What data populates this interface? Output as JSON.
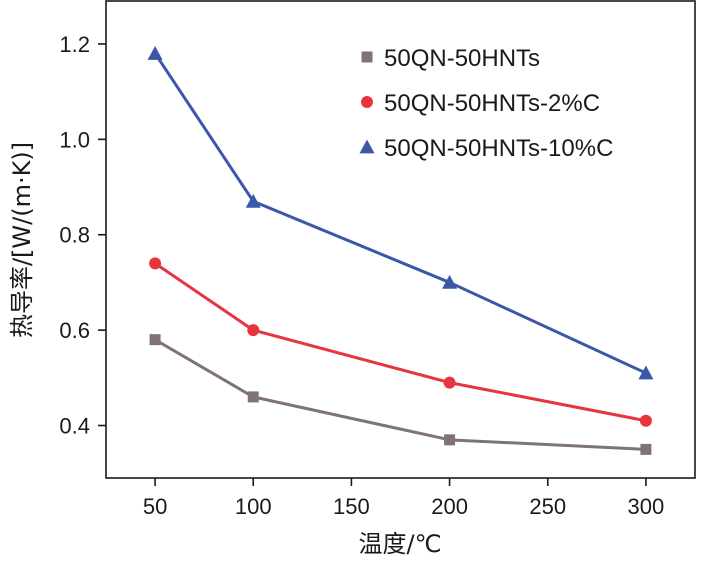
{
  "chart_data": {
    "type": "line",
    "title": "",
    "xlabel": "温度/℃",
    "ylabel": "热导率/[W/(m·K)]",
    "x": [
      50,
      100,
      200,
      300
    ],
    "xlim": [
      25,
      325
    ],
    "ylim": [
      0.29,
      1.29
    ],
    "xticks": [
      50,
      100,
      150,
      200,
      250,
      300
    ],
    "xtick_labels": [
      "50",
      "100",
      "150",
      "200",
      "250",
      "300"
    ],
    "yticks": [
      0.4,
      0.6,
      0.8,
      1.0,
      1.2
    ],
    "ytick_labels": [
      "0.4",
      "0.6",
      "0.8",
      "1.0",
      "1.2"
    ],
    "grid": false,
    "legend_position": "top-right",
    "series": [
      {
        "name": "50QN-50HNTs",
        "marker": "square",
        "color": "#7f7373",
        "values": [
          0.58,
          0.46,
          0.37,
          0.35
        ]
      },
      {
        "name": "50QN-50HNTs-2%C",
        "marker": "circle",
        "color": "#e8353d",
        "values": [
          0.74,
          0.6,
          0.49,
          0.41
        ]
      },
      {
        "name": "50QN-50HNTs-10%C",
        "marker": "triangle",
        "color": "#3b58a8",
        "values": [
          1.18,
          0.87,
          0.7,
          0.51
        ]
      }
    ]
  }
}
